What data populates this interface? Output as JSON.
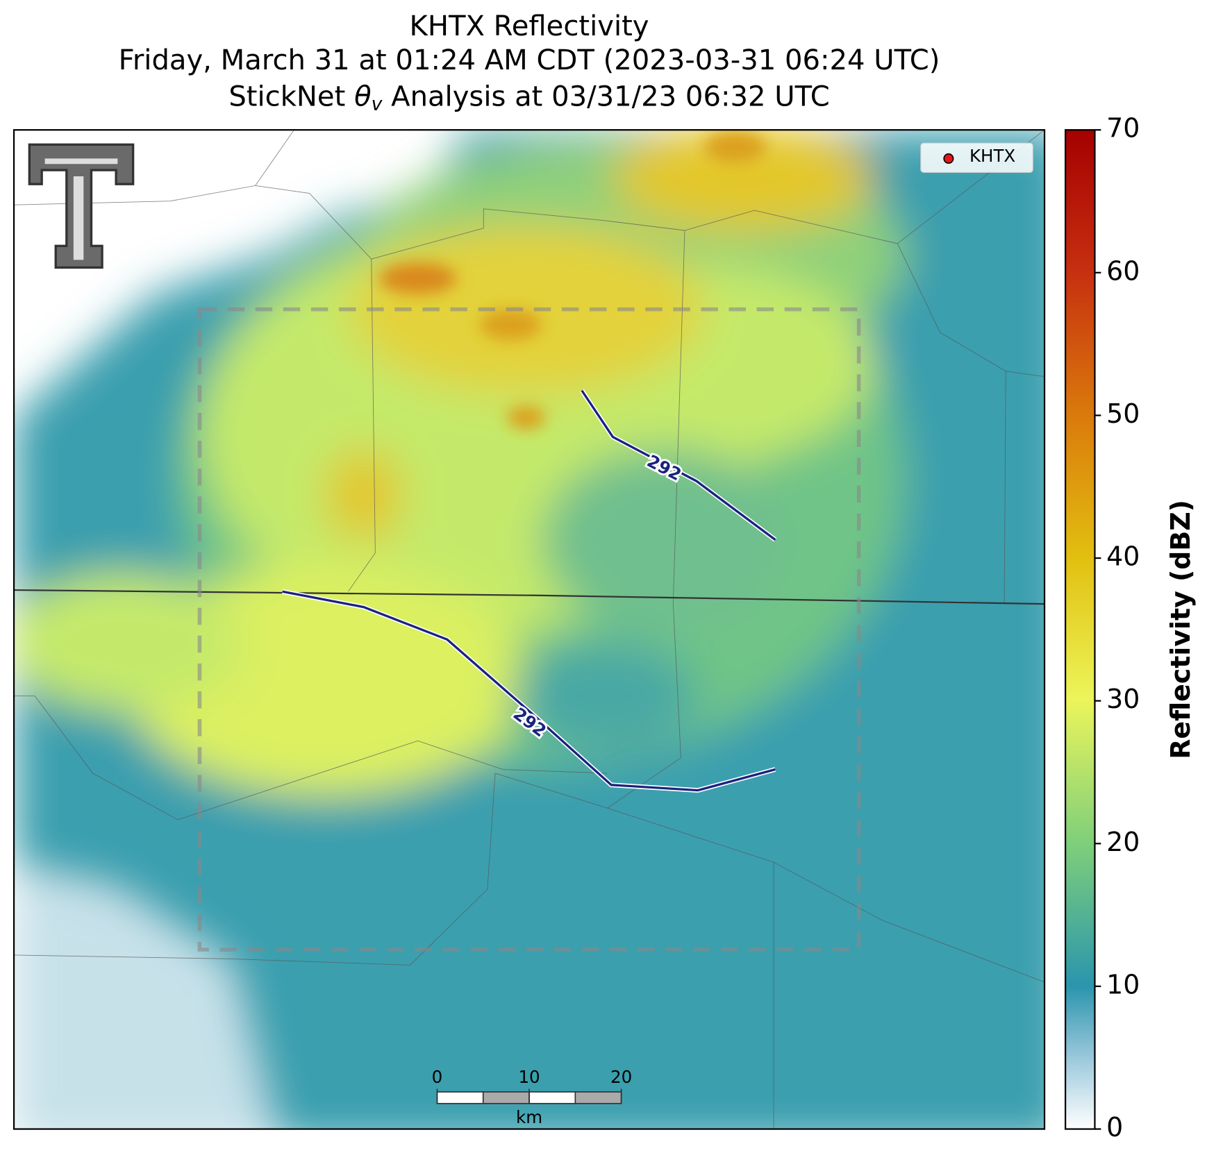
{
  "title_lines": [
    "KHTX Reflectivity",
    "Friday, March 31 at 01:24 AM CDT (2023-03-31 06:24 UTC)"
  ],
  "analysis_title": {
    "before": "StickNet ",
    "symbol": "θ",
    "subscript": "v",
    "after": " Analysis at 03/31/23 06:32 UTC"
  },
  "legend": {
    "label": "KHTX"
  },
  "contours": [
    {
      "label": "292"
    },
    {
      "label": "292"
    }
  ],
  "scale_bar": {
    "ticks": [
      0,
      10,
      20
    ],
    "unit": "km"
  },
  "colorbar": {
    "label": "Reflectivity (dBZ)",
    "lim": [
      0,
      70
    ],
    "ticks": [
      0,
      10,
      20,
      30,
      40,
      50,
      60,
      70
    ]
  }
}
